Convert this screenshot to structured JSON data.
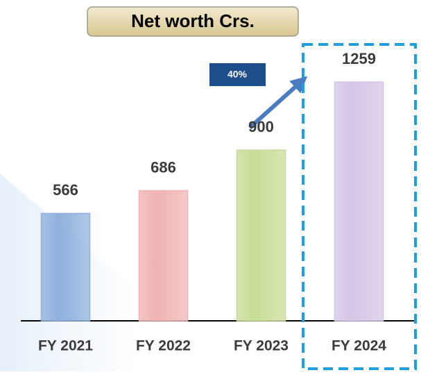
{
  "chart_data": {
    "type": "bar",
    "title": "Net worth Crs.",
    "categories": [
      "FY 2021",
      "FY 2022",
      "FY 2023",
      "FY 2024"
    ],
    "values": [
      566,
      686,
      900,
      1259
    ],
    "colors": [
      "#8fb0dd",
      "#f0b2b2",
      "#c7dc95",
      "#d5c5e6"
    ],
    "annotation": "40%"
  }
}
